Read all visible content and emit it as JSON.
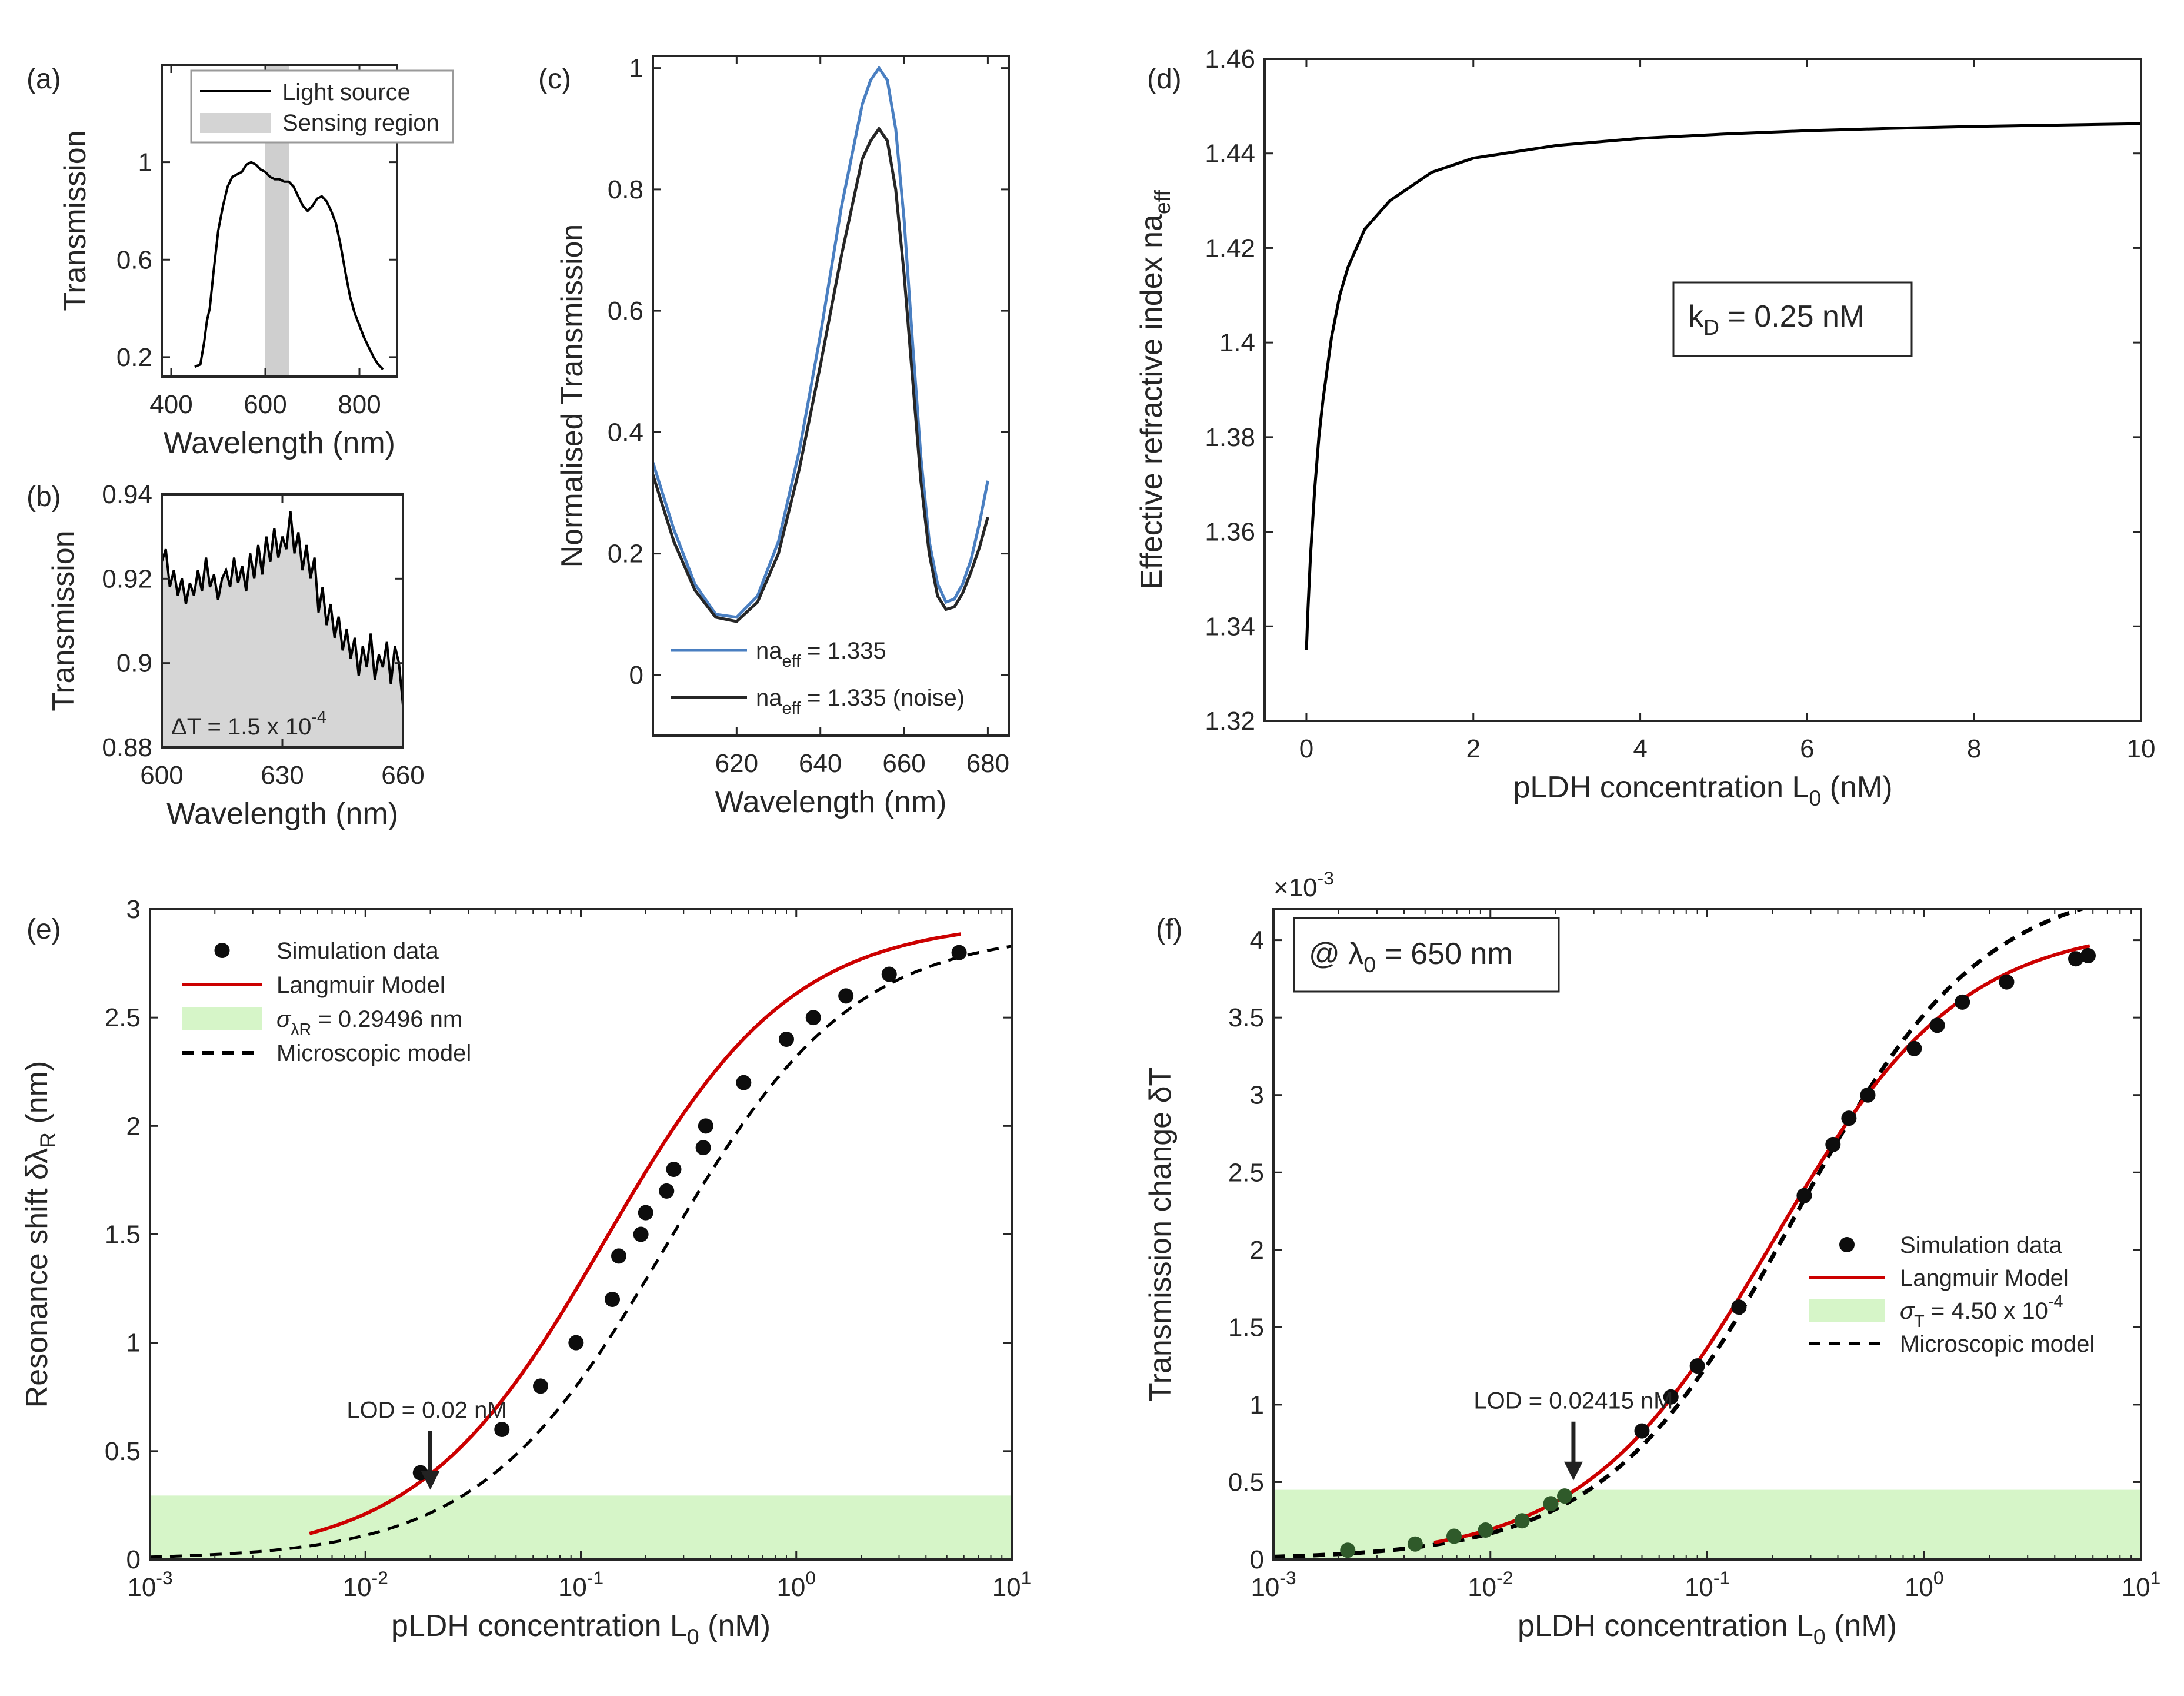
{
  "chart_data": [
    {
      "id": "a",
      "panel_label": "(a)",
      "type": "line",
      "xlabel": "Wavelength (nm)",
      "ylabel": "Transmission",
      "xlim": [
        380,
        880
      ],
      "ylim": [
        0.12,
        1.4
      ],
      "xticks": [
        400,
        600,
        800
      ],
      "xtick_labels": [
        "400",
        "600",
        "800"
      ],
      "yticks": [
        0.2,
        0.6,
        1
      ],
      "ytick_labels": [
        "0.2",
        "0.6",
        "1"
      ],
      "legend": [
        {
          "label": "Light source",
          "style": "line",
          "color": "#000000"
        },
        {
          "label": "Sensing region",
          "style": "patch",
          "color": "#d4d4d4"
        }
      ],
      "bands": [
        {
          "x0": 600,
          "x1": 650,
          "color": "#cfcfcf"
        }
      ],
      "series": [
        {
          "name": "Light source",
          "color": "#000000",
          "width": 4,
          "x": [
            450,
            462,
            470,
            476,
            482,
            490,
            500,
            510,
            520,
            530,
            540,
            550,
            560,
            570,
            580,
            590,
            600,
            610,
            620,
            630,
            640,
            650,
            660,
            670,
            680,
            690,
            700,
            710,
            720,
            730,
            740,
            750,
            760,
            770,
            780,
            790,
            800,
            810,
            820,
            830,
            840,
            850
          ],
          "y": [
            0.16,
            0.17,
            0.26,
            0.35,
            0.4,
            0.55,
            0.72,
            0.82,
            0.9,
            0.94,
            0.95,
            0.96,
            0.99,
            1.0,
            0.99,
            0.97,
            0.96,
            0.94,
            0.93,
            0.93,
            0.92,
            0.92,
            0.9,
            0.86,
            0.82,
            0.8,
            0.82,
            0.85,
            0.86,
            0.84,
            0.8,
            0.75,
            0.66,
            0.55,
            0.45,
            0.38,
            0.33,
            0.28,
            0.24,
            0.2,
            0.17,
            0.15
          ]
        }
      ]
    },
    {
      "id": "b",
      "panel_label": "(b)",
      "type": "area",
      "xlabel": "Wavelength  (nm)",
      "ylabel": "Transmission",
      "xlim": [
        600,
        660
      ],
      "ylim": [
        0.88,
        0.94
      ],
      "xticks": [
        600,
        630,
        660
      ],
      "xtick_labels": [
        "600",
        "630",
        "660"
      ],
      "yticks": [
        0.88,
        0.9,
        0.92,
        0.94
      ],
      "ytick_labels": [
        "0.88",
        "0.9",
        "0.92",
        "0.94"
      ],
      "annotation": {
        "text": "ΔT = 1.5 x 10",
        "superscript": "-4"
      },
      "series": [
        {
          "name": "Transmission (noisy)",
          "color": "#000000",
          "fill": "#d6d6d6",
          "width": 4,
          "x": [
            600,
            601,
            602,
            603,
            604,
            605,
            606,
            607,
            608,
            609,
            610,
            611,
            612,
            613,
            614,
            615,
            616,
            617,
            618,
            619,
            620,
            621,
            622,
            623,
            624,
            625,
            626,
            627,
            628,
            629,
            630,
            631,
            632,
            633,
            634,
            635,
            636,
            637,
            638,
            639,
            640,
            641,
            642,
            643,
            644,
            645,
            646,
            647,
            648,
            649,
            650,
            651,
            652,
            653,
            654,
            655,
            656,
            657,
            658,
            659,
            660
          ],
          "y": [
            0.924,
            0.927,
            0.918,
            0.922,
            0.916,
            0.92,
            0.914,
            0.919,
            0.916,
            0.922,
            0.917,
            0.925,
            0.918,
            0.921,
            0.915,
            0.92,
            0.922,
            0.918,
            0.925,
            0.919,
            0.923,
            0.917,
            0.926,
            0.92,
            0.928,
            0.921,
            0.93,
            0.924,
            0.932,
            0.925,
            0.93,
            0.927,
            0.936,
            0.926,
            0.931,
            0.922,
            0.928,
            0.92,
            0.925,
            0.912,
            0.918,
            0.909,
            0.914,
            0.906,
            0.911,
            0.903,
            0.908,
            0.901,
            0.906,
            0.897,
            0.904,
            0.899,
            0.907,
            0.896,
            0.902,
            0.899,
            0.905,
            0.895,
            0.904,
            0.9,
            0.89
          ]
        }
      ]
    },
    {
      "id": "c",
      "panel_label": "(c)",
      "type": "line",
      "xlabel": "Wavelength (nm)",
      "ylabel": "Normalised Transmission",
      "xlim": [
        600,
        685
      ],
      "ylim": [
        -0.1,
        1.02
      ],
      "xticks": [
        620,
        640,
        660,
        680
      ],
      "xtick_labels": [
        "620",
        "640",
        "660",
        "680"
      ],
      "yticks": [
        0,
        0.2,
        0.4,
        0.6,
        0.8,
        1
      ],
      "ytick_labels": [
        "0",
        "0.2",
        "0.4",
        "0.6",
        "0.8",
        "1"
      ],
      "legend": [
        {
          "label": "na",
          "subscript": "eff",
          "suffix": " = 1.335",
          "color": "#4a7fc1"
        },
        {
          "label": "na",
          "subscript": "eff",
          "suffix": " = 1.335 (noise)",
          "color": "#262626"
        }
      ],
      "series": [
        {
          "name": "na_eff = 1.335",
          "color": "#4a7fc1",
          "width": 5,
          "x": [
            600,
            605,
            610,
            615,
            620,
            625,
            630,
            635,
            640,
            645,
            650,
            652,
            654,
            656,
            658,
            660,
            662,
            664,
            666,
            668,
            670,
            672,
            674,
            676,
            678,
            680
          ],
          "y": [
            0.35,
            0.24,
            0.15,
            0.1,
            0.095,
            0.13,
            0.22,
            0.37,
            0.56,
            0.77,
            0.94,
            0.98,
            1.0,
            0.98,
            0.9,
            0.75,
            0.55,
            0.36,
            0.22,
            0.15,
            0.12,
            0.125,
            0.15,
            0.19,
            0.25,
            0.32
          ]
        },
        {
          "name": "na_eff = 1.335 (noise)",
          "color": "#262626",
          "width": 5,
          "x": [
            600,
            605,
            610,
            615,
            620,
            625,
            630,
            635,
            640,
            645,
            650,
            652,
            654,
            656,
            658,
            660,
            662,
            664,
            666,
            668,
            670,
            672,
            674,
            676,
            678,
            680
          ],
          "y": [
            0.33,
            0.22,
            0.14,
            0.095,
            0.088,
            0.12,
            0.2,
            0.34,
            0.51,
            0.69,
            0.85,
            0.88,
            0.9,
            0.88,
            0.8,
            0.66,
            0.49,
            0.32,
            0.2,
            0.13,
            0.108,
            0.112,
            0.135,
            0.17,
            0.21,
            0.26
          ]
        }
      ]
    },
    {
      "id": "d",
      "panel_label": "(d)",
      "type": "line",
      "xlabel": "pLDH concentration L",
      "xlabel_sub": "0",
      "xlabel_suffix": " (nM)",
      "ylabel": "Effective refractive index na",
      "ylabel_sub": "eff",
      "xlim": [
        -0.5,
        10
      ],
      "ylim": [
        1.32,
        1.46
      ],
      "xticks": [
        0,
        2,
        4,
        6,
        8,
        10
      ],
      "xtick_labels": [
        "0",
        "2",
        "4",
        "6",
        "8",
        "10"
      ],
      "yticks": [
        1.32,
        1.34,
        1.36,
        1.38,
        1.4,
        1.42,
        1.44,
        1.46
      ],
      "ytick_labels": [
        "1.32",
        "1.34",
        "1.36",
        "1.38",
        "1.4",
        "1.42",
        "1.44",
        "1.46"
      ],
      "annotation": {
        "text": "k",
        "subscript": "D",
        "suffix": " = 0.25 nM"
      },
      "series": [
        {
          "name": "na_eff",
          "color": "#000000",
          "width": 5,
          "x": [
            0,
            0.02,
            0.05,
            0.1,
            0.15,
            0.2,
            0.3,
            0.4,
            0.5,
            0.7,
            1,
            1.5,
            2,
            3,
            4,
            5,
            6,
            7,
            8,
            9,
            10
          ],
          "y": [
            1.335,
            1.344,
            1.355,
            1.369,
            1.38,
            1.388,
            1.401,
            1.41,
            1.416,
            1.424,
            1.43,
            1.436,
            1.439,
            1.4417,
            1.4432,
            1.4441,
            1.4448,
            1.4453,
            1.4457,
            1.446,
            1.4463
          ]
        }
      ]
    },
    {
      "id": "e",
      "panel_label": "(e)",
      "type": "scatter",
      "xscale": "log",
      "xlabel": "pLDH concentration L",
      "xlabel_sub": "0",
      "xlabel_suffix": " (nM)",
      "ylabel": "Resonance shift δλ",
      "ylabel_sub": "R",
      "ylabel_suffix": " (nm)",
      "xlim": [
        0.001,
        10
      ],
      "ylim": [
        0,
        3
      ],
      "xticks": [
        0.001,
        0.01,
        0.1,
        1,
        10
      ],
      "xtick_labels": [
        "10",
        "10",
        "10",
        "10",
        "10"
      ],
      "xtick_exps": [
        "-3",
        "-2",
        "-1",
        "0",
        "1"
      ],
      "yticks": [
        0,
        0.5,
        1,
        1.5,
        2,
        2.5,
        3
      ],
      "ytick_labels": [
        "0",
        "0.5",
        "1",
        "1.5",
        "2",
        "2.5",
        "3"
      ],
      "noise_band": {
        "y0": 0,
        "y1": 0.29496,
        "color": "#d6f5c8"
      },
      "lod": {
        "text": "LOD = 0.02 nM",
        "x": 0.02,
        "y": 0.3
      },
      "legend": [
        {
          "label": "Simulation data",
          "style": "dot"
        },
        {
          "label": "Langmuir Model",
          "style": "line",
          "color": "#cc0000"
        },
        {
          "label": "σ",
          "subscript": "λR",
          "suffix": " = 0.29496 nm",
          "style": "patch",
          "color": "#d6f5c8"
        },
        {
          "label": "Microscopic model",
          "style": "dash"
        }
      ],
      "points": {
        "x": [
          0.018,
          0.043,
          0.065,
          0.095,
          0.14,
          0.15,
          0.19,
          0.2,
          0.25,
          0.27,
          0.37,
          0.38,
          0.57,
          0.9,
          1.2,
          1.7,
          2.7,
          5.7
        ],
        "y": [
          0.4,
          0.6,
          0.8,
          1.0,
          1.2,
          1.4,
          1.5,
          1.6,
          1.7,
          1.8,
          1.9,
          2.0,
          2.2,
          2.4,
          2.5,
          2.6,
          2.7,
          2.8
        ]
      },
      "langmuir": {
        "name": "Langmuir Model",
        "color": "#cc0000",
        "Rmax": 2.95,
        "KD": 0.13,
        "xmin": 0.0055,
        "xmax": 5.8
      },
      "microscopic": {
        "name": "Microscopic model",
        "color": "#000000",
        "Rmax": 2.9,
        "KD": 0.25,
        "xmin": 0.001,
        "xmax": 10
      }
    },
    {
      "id": "f",
      "panel_label": "(f)",
      "type": "scatter",
      "xscale": "log",
      "xlabel": "pLDH concentration L",
      "xlabel_sub": "0",
      "xlabel_suffix": " (nM)",
      "ylabel": "Transmission change δT",
      "y_multiplier": "×10",
      "y_multiplier_exp": "-3",
      "xlim": [
        0.001,
        10
      ],
      "ylim": [
        0,
        4.2
      ],
      "xticks": [
        0.001,
        0.01,
        0.1,
        1,
        10
      ],
      "xtick_labels": [
        "10",
        "10",
        "10",
        "10",
        "10"
      ],
      "xtick_exps": [
        "-3",
        "-2",
        "-1",
        "0",
        "1"
      ],
      "yticks": [
        0,
        0.5,
        1,
        1.5,
        2,
        2.5,
        3,
        3.5,
        4
      ],
      "ytick_labels": [
        "0",
        "0.5",
        "1",
        "1.5",
        "2",
        "2.5",
        "3",
        "3.5",
        "4"
      ],
      "noise_band": {
        "y0": 0,
        "y1": 0.45,
        "color": "#d6f5c8"
      },
      "lod": {
        "text": "LOD = 0.02415 nM",
        "x": 0.02415,
        "y": 0.48
      },
      "annotation": {
        "text": "@ λ",
        "subscript": "0",
        "suffix": " = 650 nm"
      },
      "legend": [
        {
          "label": "Simulation data",
          "style": "dot"
        },
        {
          "label": "Langmuir Model",
          "style": "line",
          "color": "#cc0000"
        },
        {
          "label": "σ",
          "subscript": "T",
          "suffix": " = 4.50 x 10",
          "sup": "-4",
          "style": "patch",
          "color": "#d6f5c8"
        },
        {
          "label": "Microscopic model",
          "style": "dash"
        }
      ],
      "points": {
        "x": [
          0.0022,
          0.0045,
          0.0068,
          0.0095,
          0.014,
          0.019,
          0.022,
          0.05,
          0.068,
          0.09,
          0.14,
          0.28,
          0.38,
          0.45,
          0.55,
          0.9,
          1.15,
          1.5,
          2.4,
          5.0,
          5.7
        ],
        "y": [
          0.06,
          0.1,
          0.15,
          0.19,
          0.25,
          0.36,
          0.41,
          0.83,
          1.05,
          1.25,
          1.63,
          2.35,
          2.68,
          2.85,
          3.0,
          3.3,
          3.45,
          3.6,
          3.73,
          3.88,
          3.9
        ]
      },
      "langmuir": {
        "name": "Langmuir Model",
        "color": "#cc0000",
        "Rmax": 4.1,
        "KD": 0.2,
        "xmin": 0.0055,
        "xmax": 5.8
      },
      "microscopic": {
        "name": "Microscopic model",
        "color": "#000000",
        "Rmax": 4.4,
        "KD": 0.25,
        "xmin": 0.001,
        "xmax": 10
      }
    }
  ]
}
